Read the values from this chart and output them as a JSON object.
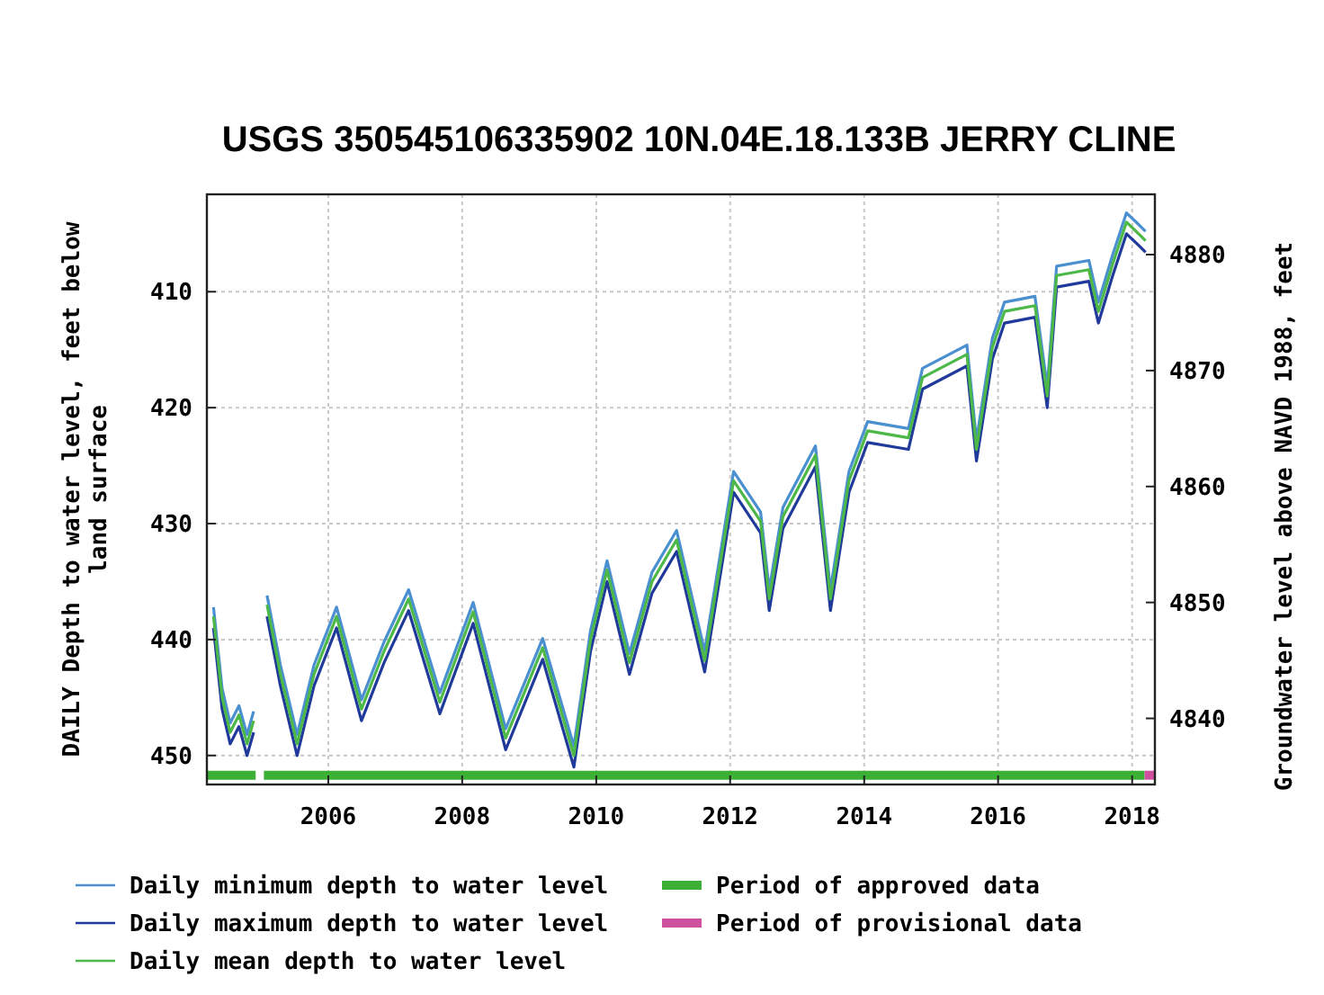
{
  "chart_data": {
    "type": "line",
    "title": "USGS 350545106335902 10N.04E.18.133B JERRY CLINE",
    "ylabel": "DAILY Depth to water level, feet below land surface",
    "y2label": "Groundwater level above NAVD 1988, feet",
    "x": [
      "2004-04-15",
      "2004-06-01",
      "2004-07-15",
      "2004-09-01",
      "2004-10-15",
      "2004-11-20",
      "2004-12-31",
      "2005-02-01",
      "2005-04-15",
      "2005-07-15",
      "2005-10-15",
      "2006-02-15",
      "2006-07-01",
      "2006-11-01",
      "2007-03-15",
      "2007-09-01",
      "2008-03-01",
      "2008-08-25",
      "2009-03-15",
      "2009-09-01",
      "2009-12-01",
      "2010-03-01",
      "2010-07-01",
      "2010-11-01",
      "2011-03-15",
      "2011-08-15",
      "2012-01-20",
      "2012-06-15",
      "2012-08-01",
      "2012-10-15",
      "2013-04-10",
      "2013-07-01",
      "2013-10-10",
      "2014-01-20",
      "2014-08-30",
      "2014-11-15",
      "2015-07-15",
      "2015-09-05",
      "2015-12-01",
      "2016-02-05",
      "2016-07-20",
      "2016-09-25",
      "2016-11-15",
      "2017-05-10",
      "2017-07-01",
      "2017-09-15",
      "2017-12-01",
      "2018-02-05",
      "2018-03-15"
    ],
    "series": [
      {
        "name": "Daily minimum depth to water level",
        "color": "#4a8fd0",
        "values": [
          437.2,
          444.2,
          447.2,
          445.7,
          448.2,
          446.2,
          null,
          436.2,
          442.2,
          448.2,
          442.2,
          437.2,
          445.2,
          440.2,
          435.7,
          444.6,
          436.8,
          447.7,
          439.9,
          449.2,
          439.2,
          433.2,
          441.2,
          434.2,
          430.6,
          441,
          425.5,
          429,
          435.7,
          428.6,
          423.3,
          435.7,
          425.5,
          421.2,
          421.8,
          416.6,
          414.6,
          422.8,
          414,
          410.9,
          410.4,
          418.2,
          407.8,
          407.3,
          410.9,
          406.9,
          403.2,
          404.2,
          404.8
        ]
      },
      {
        "name": "Daily maximum depth to water level",
        "color": "#1f3a9a",
        "values": [
          439,
          446,
          449,
          447.5,
          450,
          448,
          null,
          438,
          444,
          450,
          444,
          439,
          447,
          442,
          437.5,
          446.4,
          438.6,
          449.5,
          441.7,
          451,
          441,
          435,
          443,
          436,
          432.4,
          442.8,
          427.3,
          430.8,
          437.5,
          430.4,
          425.1,
          437.5,
          427.3,
          423,
          423.6,
          418.4,
          416.4,
          424.6,
          415.8,
          412.7,
          412.2,
          420,
          409.6,
          409.1,
          412.7,
          408.7,
          405,
          406,
          406.6
        ]
      },
      {
        "name": "Daily mean depth to water level",
        "color": "#4cb848",
        "values": [
          438,
          445,
          448,
          446.5,
          449,
          447,
          null,
          437,
          443,
          449,
          443,
          438,
          446,
          441,
          436.5,
          445.4,
          437.6,
          448.5,
          440.7,
          450,
          440,
          434,
          442,
          435,
          431.4,
          441.8,
          426.3,
          429.8,
          436.5,
          429.4,
          424.1,
          436.5,
          426.3,
          422,
          422.6,
          417.4,
          415.4,
          423.6,
          414.8,
          411.7,
          411.2,
          419,
          408.6,
          408.1,
          411.7,
          407.7,
          404,
          405,
          405.6
        ]
      },
      {
        "name": "Period of approved data",
        "color": "#3cb034",
        "x": [
          "2004-03-10",
          "2004-12-01",
          "2004-12-31",
          "2005-01-15",
          "2018-03-10"
        ],
        "values": [
          451.7,
          451.7,
          null,
          451.7,
          451.7
        ]
      },
      {
        "name": "Period of provisional data",
        "color": "#d050a0",
        "x": [
          "2018-03-10",
          "2018-05-05"
        ],
        "values": [
          451.7,
          451.7
        ]
      }
    ],
    "xlim": [
      "2004-03-10",
      "2018-05-05"
    ],
    "xticks": [
      "2006",
      "2008",
      "2010",
      "2012",
      "2014",
      "2016",
      "2018"
    ],
    "ylim": [
      452.5,
      401.6
    ],
    "yticks": [
      410,
      420,
      430,
      440,
      450
    ],
    "y2lim": [
      4834.3,
      4885.2
    ],
    "y2ticks": [
      4840,
      4850,
      4860,
      4870,
      4880
    ],
    "grid": true,
    "legend": "bottom"
  }
}
